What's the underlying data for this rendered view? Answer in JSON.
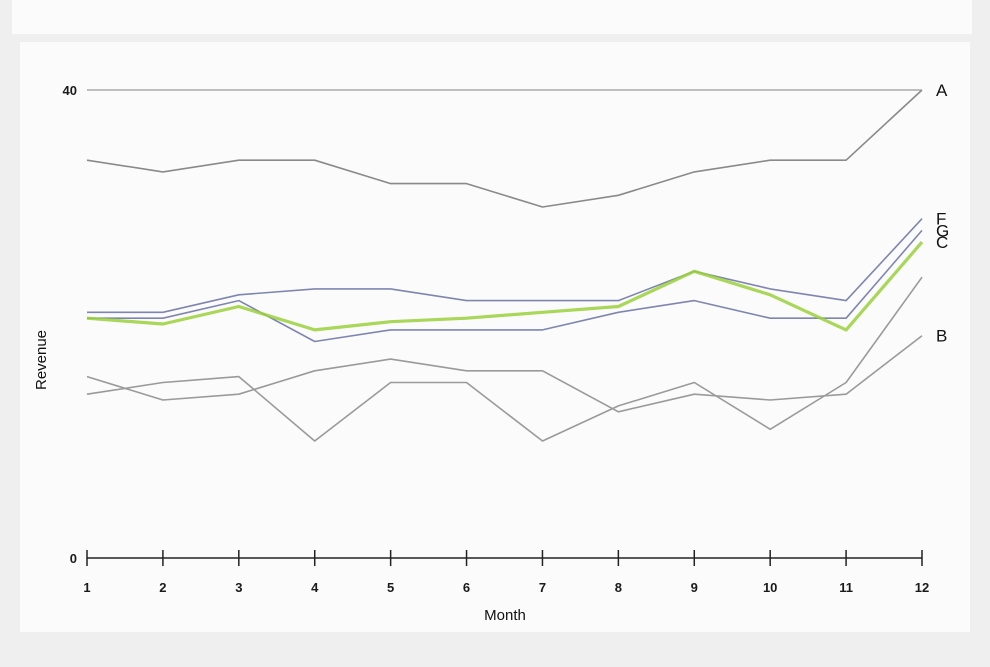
{
  "chart_data": {
    "type": "line",
    "xlabel": "Month",
    "ylabel": "Revenue",
    "x": [
      1,
      2,
      3,
      4,
      5,
      6,
      7,
      8,
      9,
      10,
      11,
      12
    ],
    "xticks": [
      "1",
      "2",
      "3",
      "4",
      "5",
      "6",
      "7",
      "8",
      "9",
      "10",
      "11",
      "12"
    ],
    "yticks": [
      "0",
      "40"
    ],
    "ylim": [
      0,
      40
    ],
    "grid": false,
    "legend": "none (series labelled at right end of each line)",
    "series": [
      {
        "name": "A",
        "color": "#8a8a8a",
        "values": [
          34,
          33,
          34,
          34,
          32,
          32,
          30,
          31,
          33,
          34,
          34,
          40
        ]
      },
      {
        "name": "F",
        "color": "#7e86b0",
        "values": [
          21,
          21,
          22.5,
          23,
          23,
          22,
          22,
          22,
          24.5,
          23,
          22,
          29
        ]
      },
      {
        "name": "G",
        "color": "#7e86b0",
        "values": [
          20.5,
          20.5,
          22,
          18.5,
          19.5,
          19.5,
          19.5,
          21,
          22,
          20.5,
          20.5,
          28
        ]
      },
      {
        "name": "C",
        "color": "#9ad03a",
        "values": [
          20.5,
          20,
          21.5,
          19.5,
          20.2,
          20.5,
          21,
          21.5,
          24.5,
          22.5,
          19.5,
          27
        ]
      },
      {
        "name": "B",
        "color": "#9a9a9a",
        "values": [
          15.5,
          13.5,
          14,
          16,
          17,
          16,
          16,
          12.5,
          14,
          13.5,
          14,
          19
        ]
      },
      {
        "name": "",
        "color": "#9a9a9a",
        "values": [
          14,
          15,
          15.5,
          10,
          15,
          15,
          10,
          13,
          15,
          11,
          15,
          24
        ]
      }
    ]
  }
}
